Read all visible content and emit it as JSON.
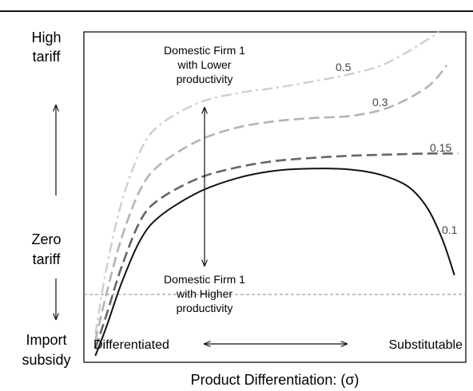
{
  "chart_data": {
    "type": "line",
    "xlabel": "Product Differentiation: (σ)",
    "x_annotations": {
      "left": "Differentiated",
      "right": "Substitutable"
    },
    "y_annotations": {
      "top_line1": "High",
      "top_line2": "tariff",
      "mid_line1": "Zero",
      "mid_line2": "tariff",
      "bottom_line1": "Import",
      "bottom_line2": "subsidy"
    },
    "zero_tariff_level": 0,
    "xlim": [
      0,
      1
    ],
    "ylim": [
      -0.63,
      2.44
    ],
    "series": [
      {
        "name": "0.5",
        "color": "#cfcfcf",
        "style": "dashdot",
        "x": [
          0.03,
          0.06,
          0.1,
          0.15,
          0.2,
          0.3,
          0.4,
          0.5,
          0.6,
          0.7,
          0.78,
          0.85,
          0.9,
          0.93
        ],
        "y": [
          -0.37,
          0.26,
          0.87,
          1.35,
          1.58,
          1.78,
          1.87,
          1.92,
          1.98,
          2.05,
          2.13,
          2.26,
          2.37,
          2.44
        ]
      },
      {
        "name": "0.3",
        "color": "#b4b4b4",
        "style": "dash",
        "x": [
          0.03,
          0.06,
          0.1,
          0.15,
          0.2,
          0.3,
          0.4,
          0.5,
          0.6,
          0.7,
          0.8,
          0.9,
          0.95
        ],
        "y": [
          -0.43,
          0.02,
          0.54,
          0.99,
          1.21,
          1.43,
          1.55,
          1.61,
          1.64,
          1.66,
          1.74,
          1.93,
          2.13
        ]
      },
      {
        "name": "0.15",
        "color": "#666666",
        "style": "dash",
        "x": [
          0.03,
          0.06,
          0.1,
          0.15,
          0.2,
          0.3,
          0.4,
          0.5,
          0.6,
          0.7,
          0.8,
          0.9,
          0.98
        ],
        "y": [
          -0.5,
          -0.18,
          0.27,
          0.7,
          0.89,
          1.08,
          1.18,
          1.24,
          1.27,
          1.29,
          1.3,
          1.31,
          1.31
        ]
      },
      {
        "name": "0.1",
        "color": "#111111",
        "style": "solid",
        "x": [
          0.03,
          0.06,
          0.1,
          0.15,
          0.2,
          0.3,
          0.4,
          0.5,
          0.6,
          0.7,
          0.78,
          0.85,
          0.9,
          0.94,
          0.97
        ],
        "y": [
          -0.57,
          -0.29,
          0.12,
          0.52,
          0.73,
          0.95,
          1.08,
          1.15,
          1.17,
          1.16,
          1.11,
          1.0,
          0.8,
          0.5,
          0.18
        ]
      }
    ],
    "annotations": {
      "top_line1": "Domestic Firm 1",
      "top_line2": "with Lower",
      "top_line3": "productivity",
      "bottom_line1": "Domestic Firm 1",
      "bottom_line2": "with Higher",
      "bottom_line3": "productivity"
    },
    "legend": "inline labels at curve ends",
    "grid": false
  }
}
